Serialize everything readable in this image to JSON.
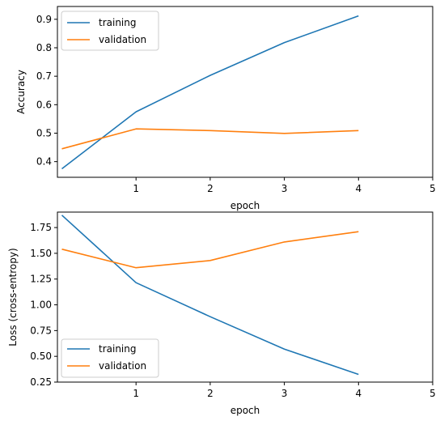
{
  "colors": {
    "training": "#1f77b4",
    "validation": "#ff7f0e",
    "axis": "#000000",
    "legend_border": "#cccccc"
  },
  "chart_data": [
    {
      "type": "line",
      "title": "",
      "xlabel": "epoch",
      "ylabel": "Accuracy",
      "xlim": [
        -0.06,
        5.0
      ],
      "ylim": [
        0.345,
        0.945
      ],
      "xticks": [
        1,
        2,
        3,
        4,
        5
      ],
      "yticks": [
        0.4,
        0.5,
        0.6,
        0.7,
        0.8,
        0.9
      ],
      "ytick_labels": [
        "0.4",
        "0.5",
        "0.6",
        "0.7",
        "0.8",
        "0.9"
      ],
      "legend": "upper-left",
      "grid": false,
      "x": [
        0,
        1,
        2,
        3,
        4
      ],
      "series": [
        {
          "name": "training",
          "color": "#1f77b4",
          "values": [
            0.375,
            0.575,
            0.703,
            0.818,
            0.912
          ]
        },
        {
          "name": "validation",
          "color": "#ff7f0e",
          "values": [
            0.445,
            0.515,
            0.509,
            0.499,
            0.509
          ]
        }
      ]
    },
    {
      "type": "line",
      "title": "",
      "xlabel": "epoch",
      "ylabel": "Loss (cross-entropy)",
      "xlim": [
        -0.06,
        5.0
      ],
      "ylim": [
        0.25,
        1.9
      ],
      "xticks": [
        1,
        2,
        3,
        4,
        5
      ],
      "yticks": [
        0.25,
        0.5,
        0.75,
        1.0,
        1.25,
        1.5,
        1.75
      ],
      "ytick_labels": [
        "0.25",
        "0.50",
        "0.75",
        "1.00",
        "1.25",
        "1.50",
        "1.75"
      ],
      "legend": "lower-left",
      "grid": false,
      "x": [
        0,
        1,
        2,
        3,
        4
      ],
      "series": [
        {
          "name": "training",
          "color": "#1f77b4",
          "values": [
            1.87,
            1.215,
            0.885,
            0.57,
            0.325
          ]
        },
        {
          "name": "validation",
          "color": "#ff7f0e",
          "values": [
            1.54,
            1.36,
            1.43,
            1.61,
            1.71
          ]
        }
      ]
    }
  ]
}
